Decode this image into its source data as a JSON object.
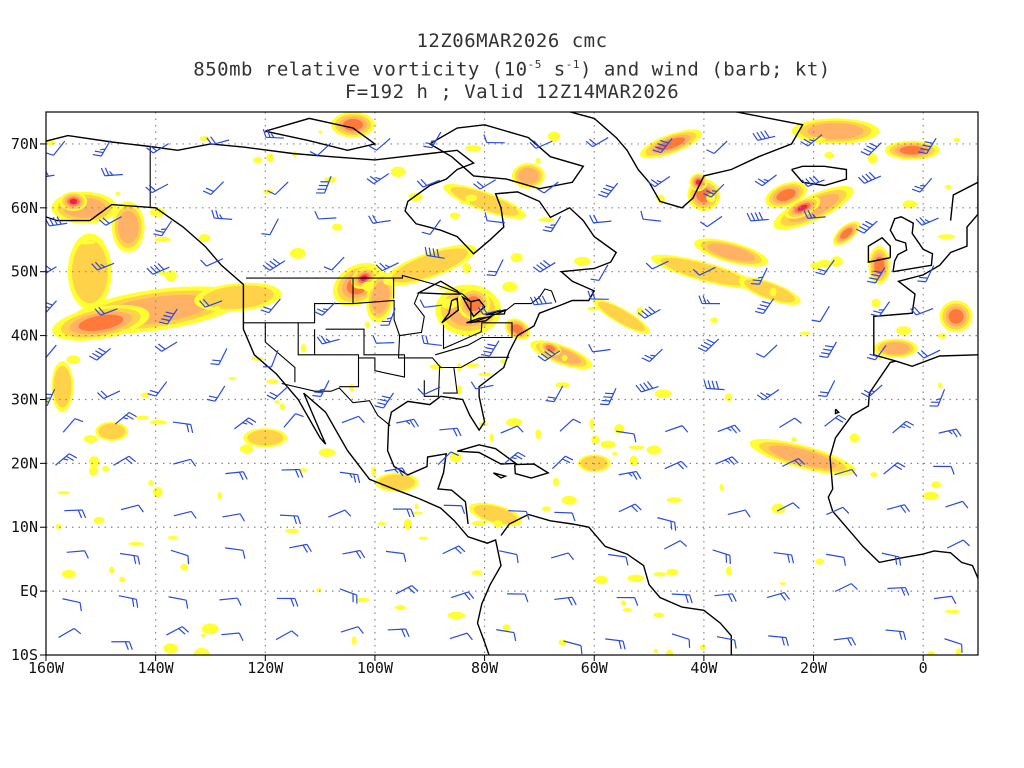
{
  "header": {
    "line1": "12Z06MAR2026 cmc",
    "line2_pre": "850mb relative vorticity (10",
    "line2_exp1": "-5",
    "line2_mid": " s",
    "line2_exp2": "-1",
    "line2_post": ") and wind (barb; kt)",
    "line3": "F=192 h ; Valid 12Z14MAR2026"
  },
  "map": {
    "lon_range": [
      -160,
      10
    ],
    "lat_range": [
      -10,
      75
    ],
    "lon_ticks": [
      "160W",
      "140W",
      "120W",
      "100W",
      "80W",
      "60W",
      "40W",
      "20W",
      "0"
    ],
    "lat_ticks": [
      "70N",
      "60N",
      "50N",
      "40N",
      "30N",
      "20N",
      "10N",
      "EQ",
      "10S"
    ],
    "grid": true,
    "colors": {
      "vort_low": "#ffff33",
      "vort_mid": "#ffd24a",
      "vort_high": "#ffb266",
      "vort_higher": "#ff7a3a",
      "vort_max": "#ee1f5a",
      "barb": "#2b4bd8",
      "coast": "#000000",
      "grid": "#888888"
    }
  }
}
